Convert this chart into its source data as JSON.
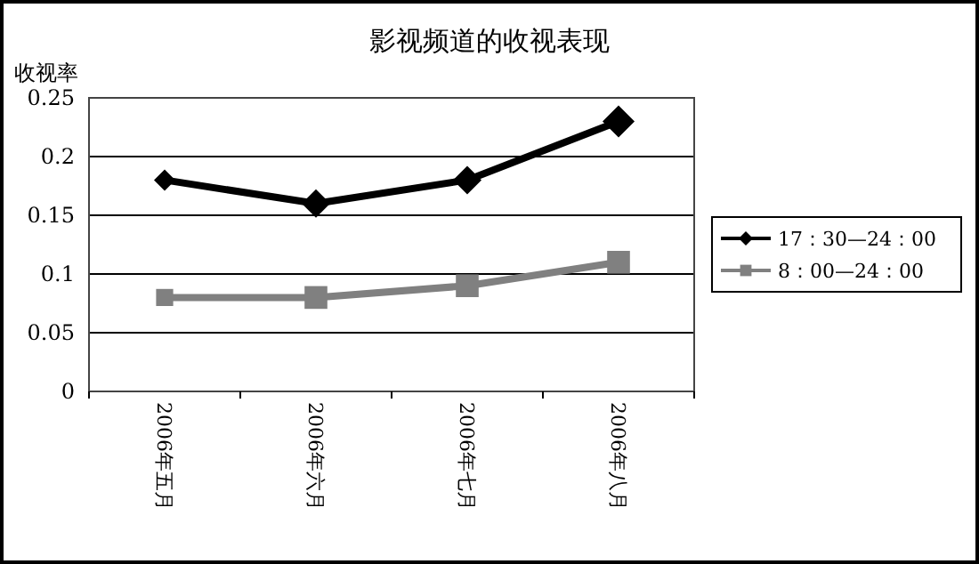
{
  "chart_data": {
    "type": "line",
    "title": "影视频道的收视表现",
    "ylabel": "收视率",
    "categories": [
      "2006年五月",
      "2006年六月",
      "2006年七月",
      "2006年八月"
    ],
    "series": [
      {
        "name": "17：30—24：00",
        "color": "#000000",
        "values": [
          0.18,
          0.16,
          0.18,
          0.23
        ],
        "marker": "diamond"
      },
      {
        "name": "8：00—24：00",
        "color": "#808080",
        "values": [
          0.08,
          0.08,
          0.09,
          0.11
        ],
        "marker": "square"
      }
    ],
    "ylim": [
      0,
      0.25
    ],
    "yticks": [
      0,
      0.05,
      0.1,
      0.15,
      0.2,
      0.25
    ],
    "grid": "y",
    "legend": "right",
    "line_style": "solid"
  }
}
